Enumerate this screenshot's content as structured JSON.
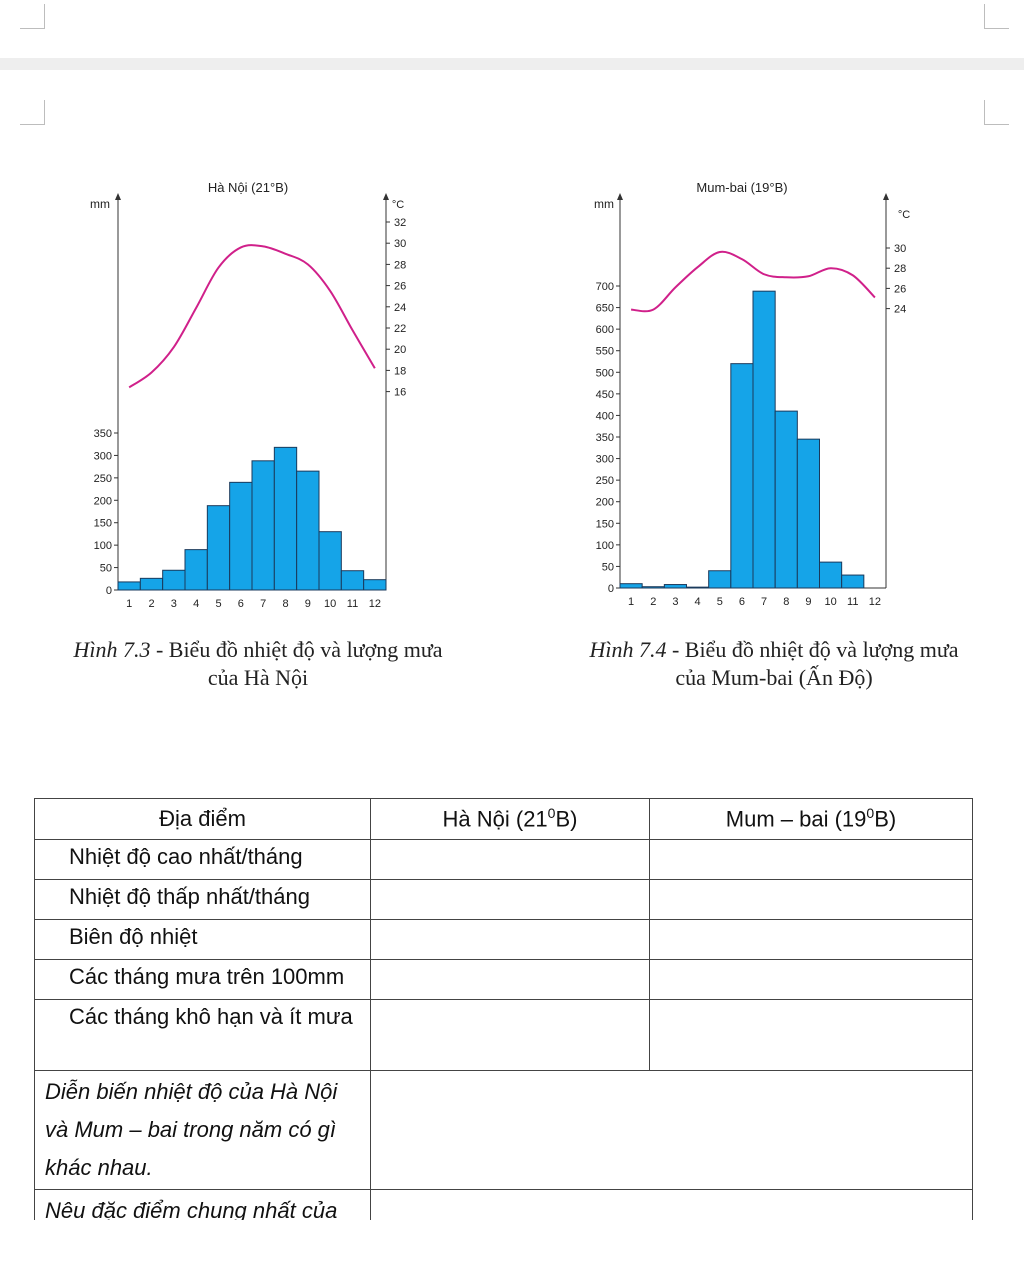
{
  "charts": [
    {
      "title": "Hà Nội (21°B)",
      "left_unit": "mm",
      "right_unit": "°C",
      "caption_fig": "Hình 7.3",
      "caption_text": " - Biểu đồ nhiệt độ và lượng mưa",
      "caption_line2": "của Hà Nội"
    },
    {
      "title": "Mum-bai (19°B)",
      "left_unit": "mm",
      "right_unit": "°C",
      "caption_fig": "Hình 7.4",
      "caption_text": " - Biểu đồ nhiệt độ và lượng mưa",
      "caption_line2": "của Mum-bai (Ấn Độ)"
    }
  ],
  "chart_data": [
    {
      "type": "bar",
      "title": "Hà Nội (21°B)",
      "categories": [
        "1",
        "2",
        "3",
        "4",
        "5",
        "6",
        "7",
        "8",
        "9",
        "10",
        "11",
        "12"
      ],
      "series": [
        {
          "name": "",
          "type": "bar",
          "unit": "mm",
          "values": [
            18,
            26,
            44,
            90,
            188,
            240,
            288,
            318,
            265,
            130,
            43,
            23
          ]
        },
        {
          "name": "",
          "type": "line",
          "unit": "°C",
          "values": [
            16.4,
            17.8,
            20.2,
            23.9,
            27.7,
            29.6,
            29.7,
            29.0,
            28.0,
            25.5,
            21.8,
            18.2
          ]
        }
      ],
      "y_left": {
        "label": "mm",
        "ticks": [
          0,
          50,
          100,
          150,
          200,
          250,
          300,
          350
        ]
      },
      "y_right": {
        "label": "°C",
        "ticks": [
          16,
          18,
          20,
          22,
          24,
          26,
          28,
          30,
          32
        ]
      },
      "grid": false
    },
    {
      "type": "bar",
      "title": "Mum-bai (19°B)",
      "categories": [
        "1",
        "2",
        "3",
        "4",
        "5",
        "6",
        "7",
        "8",
        "9",
        "10",
        "11",
        "12"
      ],
      "series": [
        {
          "name": "",
          "type": "bar",
          "unit": "mm",
          "values": [
            10,
            3,
            8,
            2,
            40,
            520,
            688,
            410,
            345,
            60,
            30,
            0
          ]
        },
        {
          "name": "",
          "type": "line",
          "unit": "°C",
          "values": [
            23.9,
            23.9,
            26.1,
            28.1,
            29.6,
            28.9,
            27.4,
            27.1,
            27.2,
            28.0,
            27.3,
            25.1
          ]
        }
      ],
      "y_left": {
        "label": "mm",
        "ticks": [
          0,
          50,
          100,
          150,
          200,
          250,
          300,
          350,
          400,
          450,
          500,
          550,
          600,
          650,
          700
        ]
      },
      "y_right": {
        "label": "°C",
        "ticks": [
          24,
          26,
          28,
          30
        ]
      },
      "grid": false
    }
  ],
  "table": {
    "headers": [
      "Địa điểm",
      "Hà Nội (21",
      "Mum – bai (19"
    ],
    "sup": "0",
    "suffix": "B)",
    "rows": [
      "Nhiệt độ cao nhất/tháng",
      "Nhiệt độ thấp nhất/tháng",
      "Biên độ nhiệt",
      "Các tháng mưa trên 100mm",
      "Các tháng khô hạn và ít mưa"
    ],
    "question1": "Diễn biến nhiệt độ của Hà Nội và Mum – bai trong năm có gì khác nhau.",
    "question2": "Nêu đặc điểm chung nhất của"
  },
  "colors": {
    "bar": "#15a4e8",
    "bar_stroke": "#1a3a5c",
    "line": "#d0208a",
    "axis": "#333333"
  }
}
